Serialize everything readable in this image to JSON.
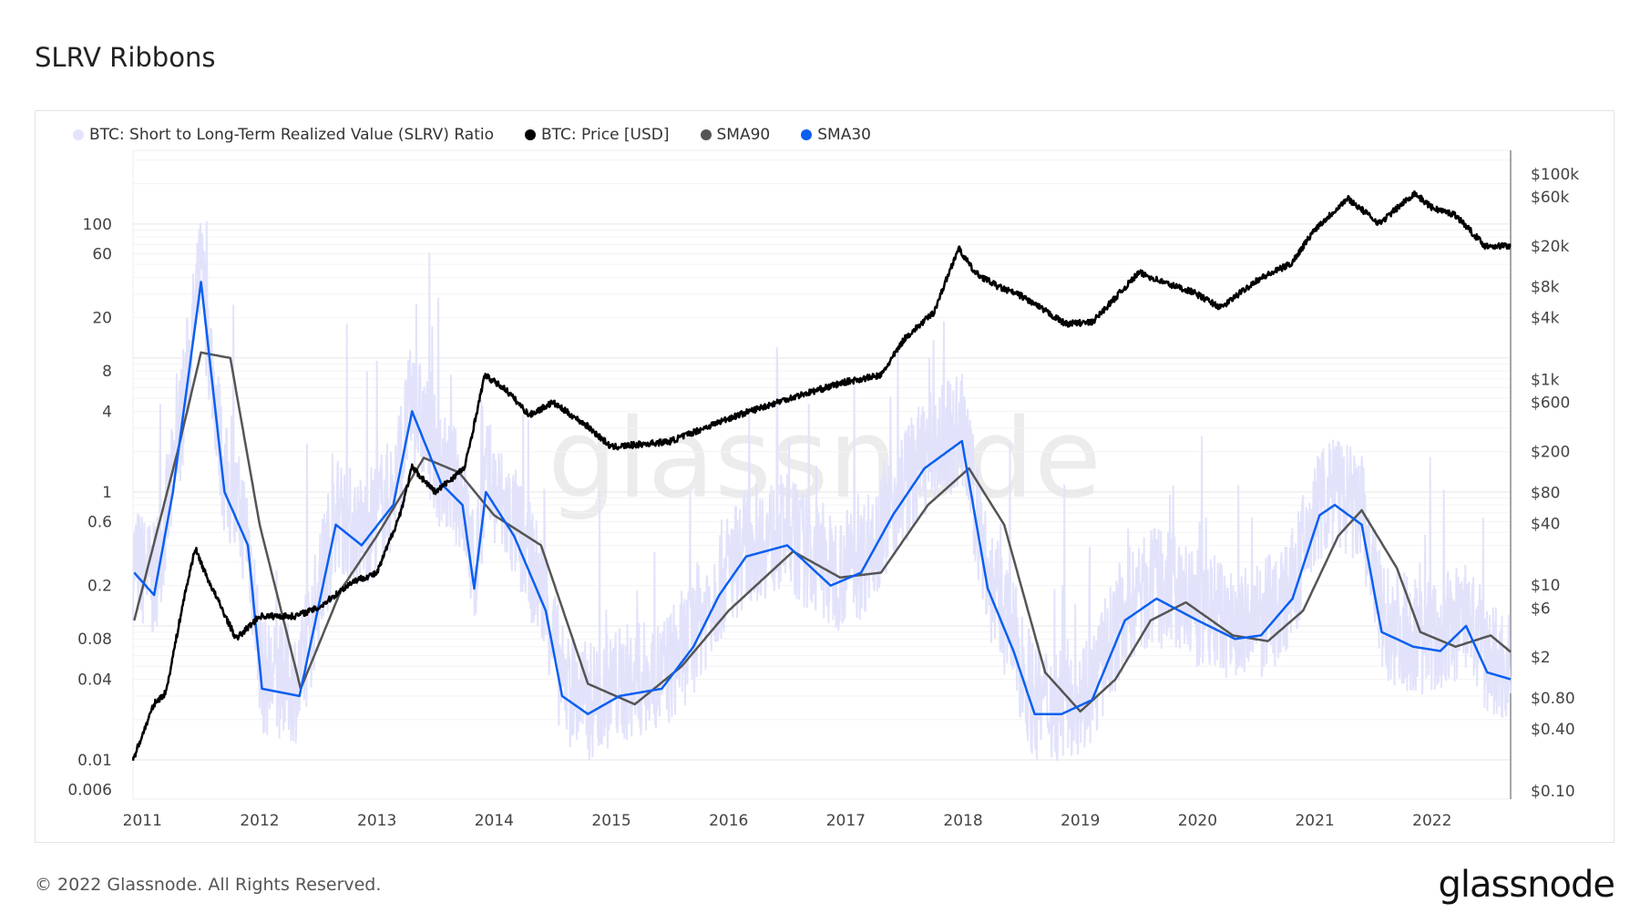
{
  "title": "SLRV Ribbons",
  "footer": "© 2022 Glassnode. All Rights Reserved.",
  "logo": "glassnode",
  "watermark": "glassnode",
  "chart_data": {
    "type": "line",
    "title": "SLRV Ribbons",
    "legend_position": "top-left",
    "grid": true,
    "x_ticks": [
      "2011",
      "2012",
      "2013",
      "2014",
      "2015",
      "2016",
      "2017",
      "2018",
      "2019",
      "2020",
      "2021",
      "2022"
    ],
    "xlim": [
      2010.92,
      2022.67
    ],
    "left_axis": {
      "scale": "log",
      "ylim": [
        0.0051,
        355
      ],
      "ticks": [
        100,
        60,
        20,
        8,
        4,
        1,
        0.6,
        0.2,
        0.08,
        0.04,
        0.01,
        0.006
      ],
      "tick_labels": [
        "100",
        "60",
        "20",
        "8",
        "4",
        "1",
        "0.6",
        "0.2",
        "0.08",
        "0.04",
        "0.01",
        "0.006"
      ]
    },
    "right_axis": {
      "scale": "log",
      "ylim": [
        0.083,
        170000
      ],
      "ticks": [
        100000,
        60000,
        20000,
        8000,
        4000,
        1000,
        600,
        200,
        80,
        40,
        10,
        6,
        2,
        0.8,
        0.4,
        0.1
      ],
      "tick_labels": [
        "$100k",
        "$60k",
        "$20k",
        "$8k",
        "$4k",
        "$1k",
        "$600",
        "$200",
        "$80",
        "$40",
        "$10",
        "$6",
        "$2",
        "$0.80",
        "$0.40",
        "$0.10"
      ]
    },
    "series": [
      {
        "name": "BTC: Short to Long-Term Realized Value (SLRV) Ratio",
        "color": "#e2e3fb",
        "axis": "left",
        "note": "noisy daily series around SMA30"
      },
      {
        "name": "BTC: Price [USD]",
        "color": "#000000",
        "axis": "right",
        "x": [
          2010.92,
          2011.1,
          2011.2,
          2011.35,
          2011.45,
          2011.55,
          2011.8,
          2012.0,
          2012.3,
          2012.5,
          2012.8,
          2013.0,
          2013.2,
          2013.3,
          2013.5,
          2013.75,
          2013.92,
          2014.1,
          2014.3,
          2014.5,
          2014.8,
          2015.0,
          2015.5,
          2016.0,
          2016.5,
          2017.0,
          2017.3,
          2017.5,
          2017.75,
          2017.96,
          2018.1,
          2018.3,
          2018.5,
          2018.87,
          2019.1,
          2019.5,
          2019.75,
          2019.95,
          2020.2,
          2020.5,
          2020.8,
          2021.0,
          2021.28,
          2021.55,
          2021.85,
          2022.0,
          2022.2,
          2022.45,
          2022.67
        ],
        "values": [
          0.2,
          0.7,
          0.9,
          7,
          23,
          12,
          3,
          5,
          5,
          6,
          11,
          13,
          50,
          140,
          80,
          140,
          1100,
          800,
          450,
          600,
          350,
          220,
          250,
          420,
          650,
          950,
          1100,
          2500,
          4500,
          19000,
          11000,
          8000,
          6500,
          3500,
          3600,
          11000,
          8500,
          7200,
          5000,
          9200,
          13500,
          29000,
          58000,
          33000,
          65000,
          47000,
          40000,
          20000,
          20000
        ]
      },
      {
        "name": "SMA90",
        "color": "#555555",
        "axis": "left",
        "x": [
          2010.93,
          2011.3,
          2011.5,
          2011.75,
          2012.0,
          2012.35,
          2012.7,
          2013.0,
          2013.4,
          2013.7,
          2014.0,
          2014.4,
          2014.8,
          2015.2,
          2015.6,
          2016.0,
          2016.55,
          2016.95,
          2017.3,
          2017.7,
          2018.05,
          2018.35,
          2018.7,
          2019.0,
          2019.3,
          2019.6,
          2019.9,
          2020.3,
          2020.6,
          2020.9,
          2021.2,
          2021.4,
          2021.7,
          2021.9,
          2022.2,
          2022.5,
          2022.67
        ],
        "values": [
          0.11,
          2,
          11,
          10,
          0.57,
          0.034,
          0.19,
          0.47,
          1.8,
          1.4,
          0.67,
          0.4,
          0.037,
          0.026,
          0.05,
          0.13,
          0.36,
          0.23,
          0.25,
          0.8,
          1.5,
          0.57,
          0.045,
          0.023,
          0.04,
          0.11,
          0.15,
          0.085,
          0.077,
          0.13,
          0.47,
          0.73,
          0.27,
          0.09,
          0.07,
          0.085,
          0.064
        ]
      },
      {
        "name": "SMA30",
        "color": "#0a5ff0",
        "axis": "left",
        "x": [
          2010.93,
          2011.1,
          2011.26,
          2011.5,
          2011.7,
          2011.9,
          2012.02,
          2012.34,
          2012.65,
          2012.87,
          2013.14,
          2013.3,
          2013.55,
          2013.73,
          2013.83,
          2013.93,
          2014.17,
          2014.44,
          2014.58,
          2014.8,
          2015.07,
          2015.43,
          2015.7,
          2015.92,
          2016.15,
          2016.5,
          2016.87,
          2017.13,
          2017.4,
          2017.67,
          2017.99,
          2018.21,
          2018.43,
          2018.61,
          2018.84,
          2019.1,
          2019.38,
          2019.65,
          2020.0,
          2020.32,
          2020.54,
          2020.81,
          2021.04,
          2021.17,
          2021.4,
          2021.57,
          2021.84,
          2022.07,
          2022.29,
          2022.47,
          2022.67
        ],
        "values": [
          0.25,
          0.17,
          1,
          37,
          1,
          0.4,
          0.034,
          0.03,
          0.57,
          0.4,
          0.8,
          4,
          1.15,
          0.8,
          0.19,
          1,
          0.47,
          0.13,
          0.03,
          0.022,
          0.03,
          0.034,
          0.07,
          0.17,
          0.33,
          0.4,
          0.2,
          0.25,
          0.67,
          1.5,
          2.4,
          0.19,
          0.065,
          0.022,
          0.022,
          0.028,
          0.11,
          0.16,
          0.11,
          0.08,
          0.085,
          0.16,
          0.67,
          0.8,
          0.57,
          0.09,
          0.07,
          0.065,
          0.1,
          0.045,
          0.04
        ]
      }
    ]
  }
}
